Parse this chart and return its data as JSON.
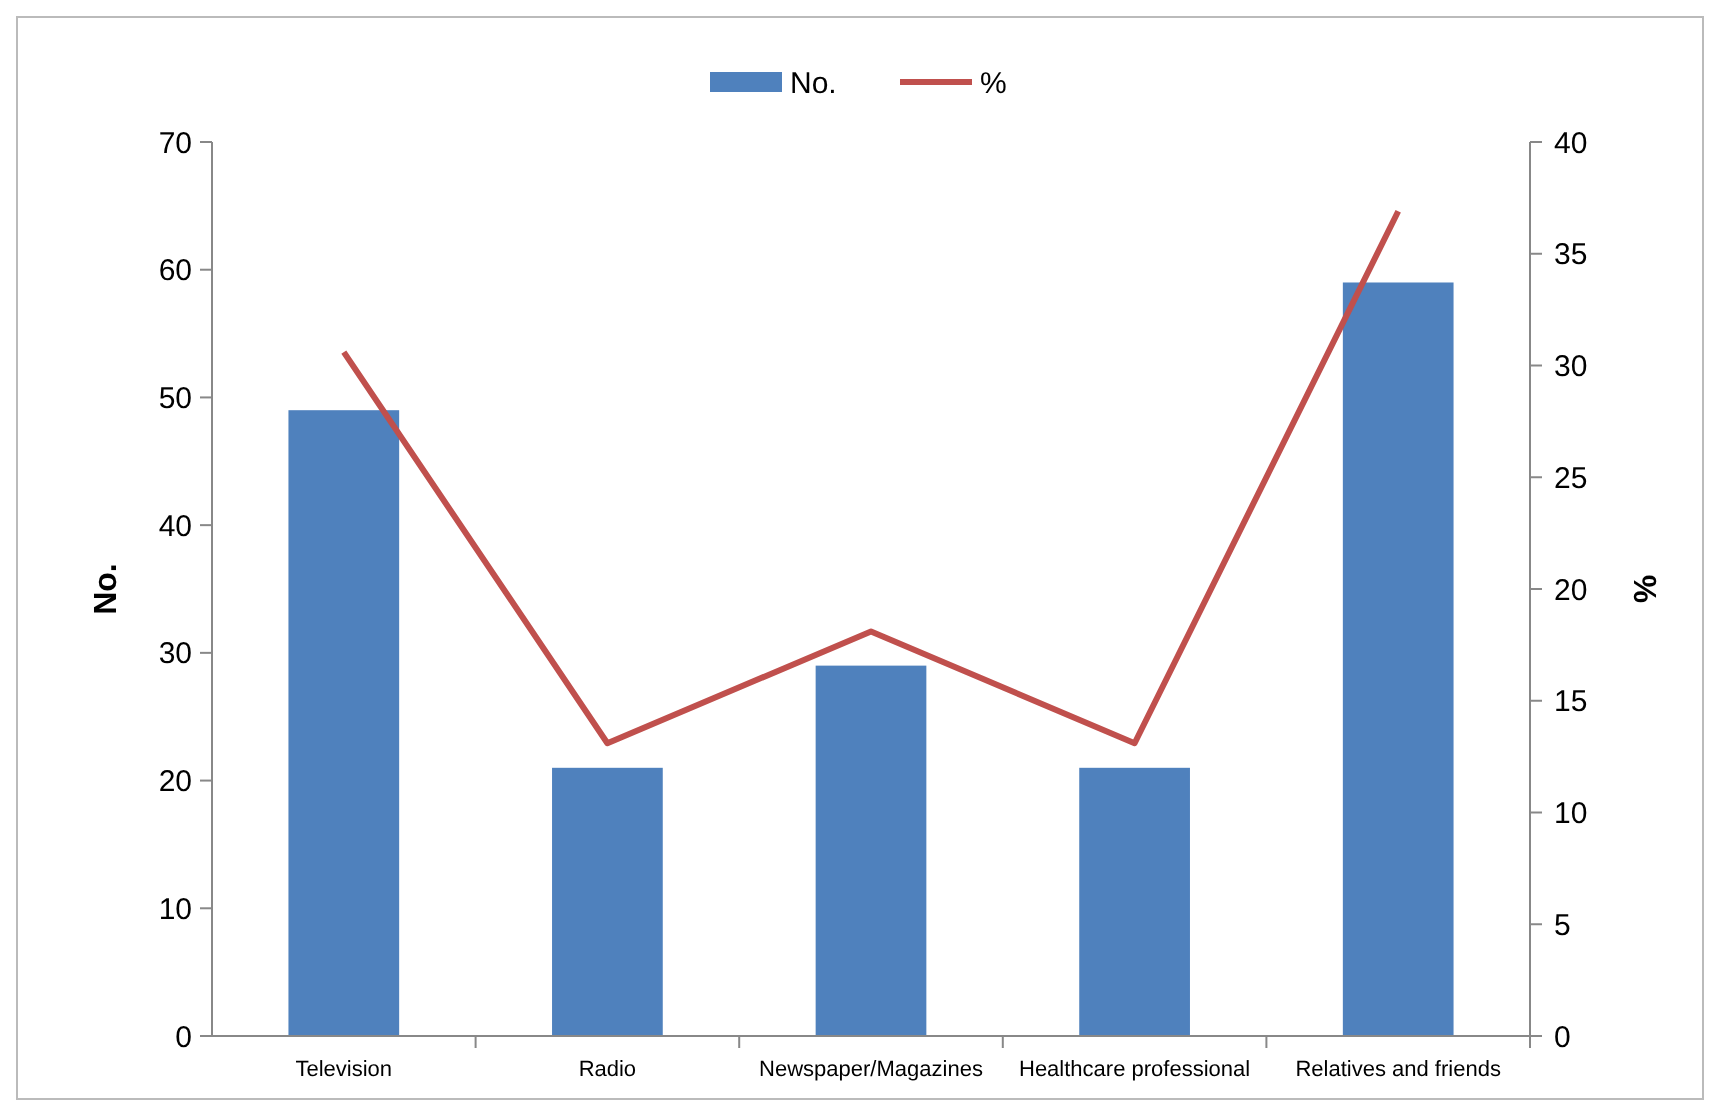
{
  "chart_data": {
    "type": "bar",
    "categories": [
      "Television",
      "Radio",
      "Newspaper/Magazines",
      "Healthcare professional",
      "Relatives and friends"
    ],
    "series": [
      {
        "name": "No.",
        "color": "#4f81bd",
        "values": [
          49,
          21,
          29,
          21,
          59
        ]
      },
      {
        "name": "%",
        "type": "line",
        "axis": "y2",
        "color": "#c0504d",
        "values": [
          30.6,
          13.1,
          18.1,
          13.1,
          36.9
        ]
      }
    ],
    "ylabel": "No.",
    "y2label": "%",
    "ylim": [
      0,
      70
    ],
    "yticks": [
      0,
      10,
      20,
      30,
      40,
      50,
      60,
      70
    ],
    "y2lim": [
      0,
      40
    ],
    "y2ticks": [
      0,
      5,
      10,
      15,
      20,
      25,
      30,
      35,
      40
    ],
    "legend": "top",
    "grid": false,
    "marker": "none"
  }
}
